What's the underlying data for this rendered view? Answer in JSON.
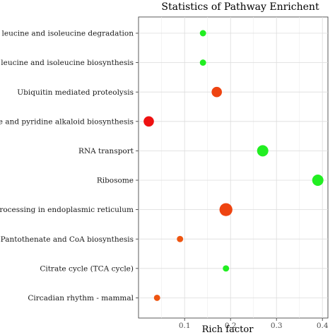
{
  "chart_data": {
    "type": "scatter",
    "title": "Statistics of Pathway Enrichent",
    "xlabel": "Rich factor",
    "ylabel": "",
    "xlim": [
      0,
      0.4
    ],
    "xticks": [
      0.1,
      0.2,
      0.3,
      0.4
    ],
    "xtick_labels": [
      "0.1",
      "0.2",
      "0.3",
      "0.4"
    ],
    "grid": true,
    "legend": "none",
    "color_scale": {
      "low": "#00ee00",
      "high": "#ee0000"
    },
    "categories": [
      "Valine, leucine and isoleucine degradation",
      "Valine, leucine and isoleucine biosynthesis",
      "Ubiquitin mediated proteolysis",
      "Piperidine and pyridine alkaloid biosynthesis",
      "RNA transport",
      "Ribosome",
      "Protein processing in endoplasmic reticulum",
      "Pantothenate and CoA biosynthesis",
      "Citrate cycle (TCA cycle)",
      "Circadian rhythm - mammal"
    ],
    "points": [
      {
        "category": "Valine, leucine and isoleucine degradation",
        "x": 0.14,
        "size": 1,
        "color": "#22ee22"
      },
      {
        "category": "Valine, leucine and isoleucine biosynthesis",
        "x": 0.14,
        "size": 1,
        "color": "#22ee22"
      },
      {
        "category": "Ubiquitin mediated proteolysis",
        "x": 0.17,
        "size": 4,
        "color": "#ee4411"
      },
      {
        "category": "Piperidine and pyridine alkaloid biosynthesis",
        "x": 0.022,
        "size": 4,
        "color": "#ee1111"
      },
      {
        "category": "RNA transport",
        "x": 0.27,
        "size": 5,
        "color": "#22ee22"
      },
      {
        "category": "Ribosome",
        "x": 0.39,
        "size": 5,
        "color": "#22ee22"
      },
      {
        "category": "Protein processing in endoplasmic reticulum",
        "x": 0.19,
        "size": 7,
        "color": "#ee4411"
      },
      {
        "category": "Pantothenate and CoA biosynthesis",
        "x": 0.09,
        "size": 1,
        "color": "#ee5511"
      },
      {
        "category": "Citrate cycle (TCA cycle)",
        "x": 0.19,
        "size": 1,
        "color": "#22ee22"
      },
      {
        "category": "Circadian rhythm - mammal",
        "x": 0.04,
        "size": 1,
        "color": "#ee5511"
      }
    ]
  }
}
